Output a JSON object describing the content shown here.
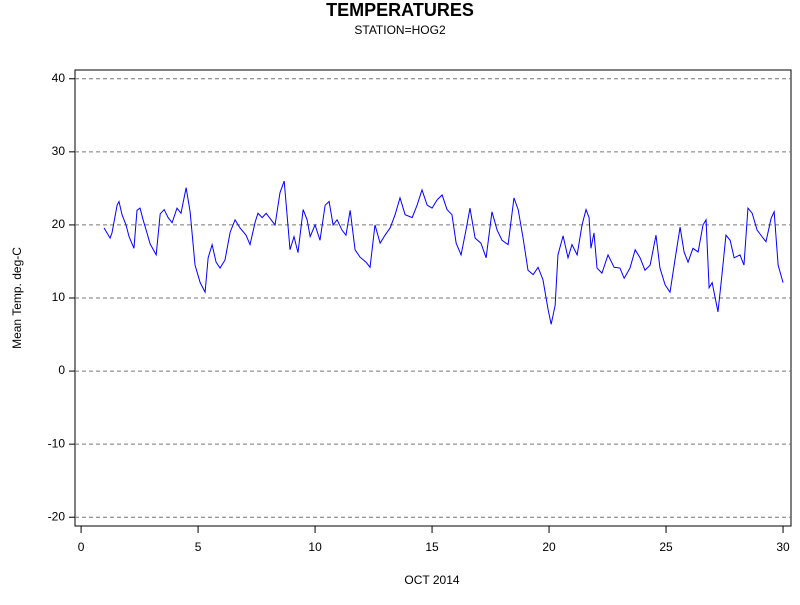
{
  "chart_data": {
    "type": "line",
    "title": "TEMPERATURES",
    "subtitle": "STATION=HOG2",
    "xlabel": "OCT 2014",
    "ylabel": "Mean Temp. deg-C",
    "xlim": [
      -0.26,
      30.34
    ],
    "ylim": [
      -21.2,
      41.2
    ],
    "xticks": [
      0,
      5,
      10,
      15,
      20,
      25,
      30
    ],
    "yticks": [
      -20,
      -10,
      0,
      10,
      20,
      30,
      40
    ],
    "grid": true,
    "x": [
      0.98,
      1.24,
      1.32,
      1.54,
      1.62,
      1.75,
      1.92,
      2.05,
      2.26,
      2.39,
      2.52,
      2.65,
      2.78,
      2.95,
      3.21,
      3.38,
      3.55,
      3.72,
      3.89,
      4.1,
      4.27,
      4.49,
      4.66,
      4.87,
      5.09,
      5.3,
      5.43,
      5.6,
      5.77,
      5.94,
      6.15,
      6.37,
      6.58,
      6.79,
      7.05,
      7.22,
      7.44,
      7.56,
      7.74,
      7.91,
      8.12,
      8.29,
      8.5,
      8.68,
      8.93,
      9.1,
      9.27,
      9.49,
      9.66,
      9.79,
      10.0,
      10.21,
      10.43,
      10.6,
      10.77,
      10.94,
      11.15,
      11.32,
      11.5,
      11.71,
      11.92,
      12.18,
      12.35,
      12.56,
      12.78,
      12.99,
      13.21,
      13.42,
      13.63,
      13.85,
      14.15,
      14.36,
      14.57,
      14.79,
      15.0,
      15.21,
      15.43,
      15.64,
      15.85,
      16.03,
      16.24,
      16.45,
      16.62,
      16.84,
      17.09,
      17.31,
      17.56,
      17.78,
      17.99,
      18.25,
      18.5,
      18.68,
      18.89,
      19.1,
      19.32,
      19.53,
      19.74,
      19.96,
      20.09,
      20.26,
      20.38,
      20.6,
      20.81,
      20.98,
      21.2,
      21.41,
      21.58,
      21.71,
      21.79,
      21.92,
      22.05,
      22.26,
      22.52,
      22.78,
      23.03,
      23.21,
      23.46,
      23.68,
      23.89,
      24.1,
      24.32,
      24.57,
      24.74,
      24.96,
      25.17,
      25.38,
      25.6,
      25.77,
      25.94,
      26.15,
      26.37,
      26.58,
      26.71,
      26.84,
      26.97,
      27.22,
      27.39,
      27.56,
      27.74,
      27.91,
      28.16,
      28.33,
      28.5,
      28.68,
      28.89,
      29.1,
      29.27,
      29.49,
      29.62,
      29.79,
      30.0
    ],
    "series": [
      {
        "name": "Mean Temp",
        "color": "#0000ff",
        "values": [
          19.6,
          18.2,
          18.9,
          22.7,
          23.2,
          21.4,
          20.0,
          18.4,
          16.8,
          22.0,
          22.3,
          20.7,
          19.3,
          17.4,
          15.9,
          21.5,
          22.1,
          21.0,
          20.3,
          22.3,
          21.6,
          25.1,
          21.8,
          14.5,
          12.1,
          10.8,
          15.5,
          17.3,
          14.9,
          14.1,
          15.2,
          19.0,
          20.7,
          19.6,
          18.6,
          17.3,
          20.4,
          21.6,
          21.0,
          21.6,
          20.7,
          20.0,
          24.4,
          26.0,
          16.6,
          18.4,
          16.2,
          22.1,
          20.7,
          18.4,
          20.0,
          17.9,
          22.7,
          23.2,
          20.0,
          20.7,
          19.3,
          18.6,
          22.0,
          16.6,
          15.6,
          14.9,
          14.2,
          20.0,
          17.5,
          18.6,
          19.6,
          21.4,
          23.7,
          21.4,
          21.0,
          22.7,
          24.8,
          22.7,
          22.3,
          23.4,
          24.1,
          22.1,
          21.4,
          17.5,
          15.9,
          19.3,
          22.3,
          18.2,
          17.5,
          15.5,
          21.8,
          19.3,
          17.9,
          17.3,
          23.7,
          22.1,
          18.2,
          13.8,
          13.2,
          14.2,
          12.5,
          8.4,
          6.4,
          9.0,
          15.9,
          18.5,
          15.5,
          17.3,
          15.9,
          20.0,
          22.1,
          21.0,
          16.8,
          18.9,
          14.1,
          13.4,
          15.9,
          14.2,
          14.1,
          12.7,
          14.1,
          16.6,
          15.5,
          13.8,
          14.5,
          18.6,
          14.1,
          11.8,
          10.8,
          15.2,
          19.7,
          16.3,
          14.9,
          16.8,
          16.3,
          20.0,
          20.7,
          11.4,
          12.1,
          8.1,
          13.2,
          18.6,
          17.9,
          15.5,
          15.9,
          14.5,
          22.3,
          21.6,
          19.3,
          18.4,
          17.7,
          20.9,
          21.8,
          14.5,
          12.1
        ]
      }
    ]
  }
}
